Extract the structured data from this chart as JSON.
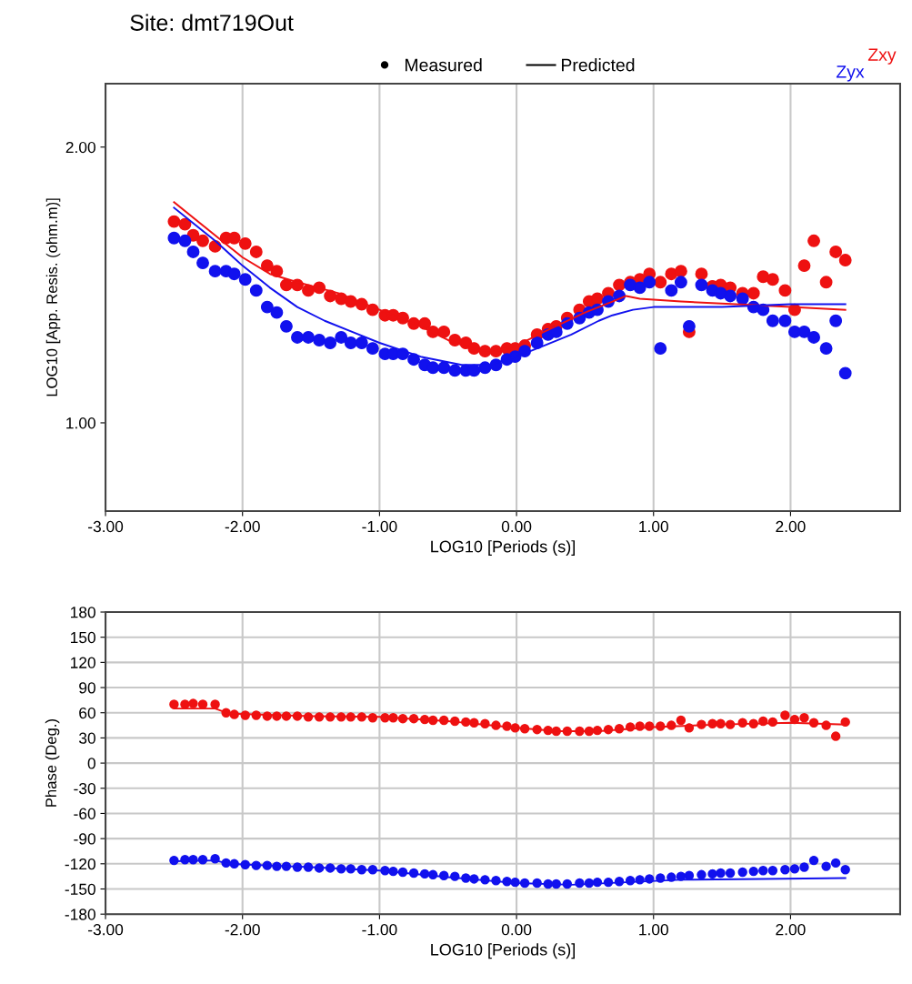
{
  "chart_data": [
    {
      "type": "scatter",
      "title": "Site: dmt719Out",
      "xlabel": "LOG10 [Periods (s)]",
      "ylabel": "LOG10 [App. Resis. (ohm.m)]",
      "annotations": [
        "Measured",
        "Predicted"
      ],
      "legend": "top",
      "grid": "x",
      "xlim": [
        -3.0,
        2.8
      ],
      "ylim": [
        0.68,
        2.23
      ],
      "xticks": [
        {
          "value": -3,
          "label": "-3.00"
        },
        {
          "value": -2,
          "label": "-2.00"
        },
        {
          "value": -1,
          "label": "-1.00"
        },
        {
          "value": 0,
          "label": "0.00"
        },
        {
          "value": 1,
          "label": "1.00"
        },
        {
          "value": 2,
          "label": "2.00"
        }
      ],
      "yticks": [
        {
          "value": 1,
          "label": "1.00"
        },
        {
          "value": 2,
          "label": "2.00"
        }
      ],
      "x": [
        -2.5,
        -2.42,
        -2.36,
        -2.29,
        -2.2,
        -2.12,
        -2.06,
        -1.98,
        -1.9,
        -1.82,
        -1.75,
        -1.68,
        -1.6,
        -1.52,
        -1.44,
        -1.36,
        -1.28,
        -1.21,
        -1.13,
        -1.05,
        -0.96,
        -0.9,
        -0.83,
        -0.75,
        -0.67,
        -0.61,
        -0.53,
        -0.45,
        -0.37,
        -0.31,
        -0.23,
        -0.15,
        -0.07,
        -0.01,
        0.06,
        0.15,
        0.23,
        0.29,
        0.37,
        0.46,
        0.53,
        0.59,
        0.67,
        0.75,
        0.83,
        0.9,
        0.97,
        1.05,
        1.13,
        1.2,
        1.26,
        1.35,
        1.43,
        1.49,
        1.56,
        1.65,
        1.73,
        1.8,
        1.87,
        1.96,
        2.03,
        2.1,
        2.17,
        2.26,
        2.33,
        2.4
      ],
      "series": [
        {
          "name": "Zxy",
          "marker": "circle",
          "color": "#ee1111",
          "values": [
            1.73,
            1.72,
            1.68,
            1.66,
            1.64,
            1.67,
            1.67,
            1.65,
            1.62,
            1.57,
            1.55,
            1.5,
            1.5,
            1.48,
            1.49,
            1.46,
            1.45,
            1.44,
            1.43,
            1.41,
            1.39,
            1.39,
            1.38,
            1.36,
            1.36,
            1.33,
            1.33,
            1.3,
            1.29,
            1.27,
            1.26,
            1.26,
            1.27,
            1.27,
            1.28,
            1.32,
            1.34,
            1.35,
            1.38,
            1.41,
            1.44,
            1.45,
            1.47,
            1.5,
            1.51,
            1.52,
            1.54,
            1.51,
            1.54,
            1.55,
            1.33,
            1.54,
            1.495,
            1.5,
            1.49,
            1.47,
            1.47,
            1.53,
            1.52,
            1.48,
            1.41,
            1.57,
            1.66,
            1.51,
            1.62,
            1.59
          ]
        },
        {
          "name": "Zyx",
          "marker": "circle",
          "color": "#1111ee",
          "values": [
            1.67,
            1.66,
            1.62,
            1.58,
            1.55,
            1.55,
            1.54,
            1.52,
            1.48,
            1.42,
            1.4,
            1.35,
            1.31,
            1.31,
            1.3,
            1.29,
            1.31,
            1.29,
            1.29,
            1.27,
            1.25,
            1.25,
            1.25,
            1.23,
            1.21,
            1.2,
            1.2,
            1.19,
            1.19,
            1.19,
            1.2,
            1.21,
            1.23,
            1.24,
            1.26,
            1.29,
            1.32,
            1.33,
            1.36,
            1.38,
            1.4,
            1.41,
            1.44,
            1.46,
            1.5,
            1.49,
            1.51,
            1.27,
            1.48,
            1.51,
            1.35,
            1.5,
            1.48,
            1.47,
            1.46,
            1.45,
            1.42,
            1.41,
            1.37,
            1.37,
            1.33,
            1.33,
            1.31,
            1.27,
            1.37,
            1.18
          ]
        },
        {
          "type": "line",
          "color": "#ee1111",
          "x": [
            -2.5,
            -2.2,
            -2.0,
            -1.8,
            -1.6,
            -1.3,
            -1.0,
            -0.7,
            -0.5,
            -0.3,
            -0.15,
            0,
            0.2,
            0.5,
            0.7,
            0.8,
            0.9,
            1.2,
            1.6,
            2.0,
            2.4
          ],
          "values": [
            1.8,
            1.68,
            1.6,
            1.54,
            1.51,
            1.47,
            1.41,
            1.35,
            1.3,
            1.265,
            1.26,
            1.28,
            1.33,
            1.4,
            1.44,
            1.46,
            1.45,
            1.44,
            1.43,
            1.42,
            1.41
          ]
        },
        {
          "type": "line",
          "color": "#1111ee",
          "x": [
            -2.5,
            -2.2,
            -2.0,
            -1.8,
            -1.6,
            -1.4,
            -1.2,
            -1.0,
            -0.7,
            -0.4,
            -0.2,
            0,
            0.2,
            0.4,
            0.6,
            0.7,
            0.85,
            1.0,
            1.5,
            2.0,
            2.4
          ],
          "values": [
            1.78,
            1.66,
            1.57,
            1.49,
            1.42,
            1.37,
            1.33,
            1.29,
            1.24,
            1.21,
            1.21,
            1.24,
            1.28,
            1.32,
            1.37,
            1.39,
            1.41,
            1.42,
            1.42,
            1.43,
            1.43
          ]
        }
      ]
    },
    {
      "type": "scatter",
      "xlabel": "LOG10 [Periods (s)]",
      "ylabel": "Phase (Deg.)",
      "grid": true,
      "xlim": [
        -3.0,
        2.8
      ],
      "ylim": [
        -180,
        180
      ],
      "xticks": [
        {
          "value": -3,
          "label": "-3.00"
        },
        {
          "value": -2,
          "label": "-2.00"
        },
        {
          "value": -1,
          "label": "-1.00"
        },
        {
          "value": 0,
          "label": "0.00"
        },
        {
          "value": 1,
          "label": "1.00"
        },
        {
          "value": 2,
          "label": "2.00"
        }
      ],
      "yticks": [
        -180,
        -150,
        -120,
        -90,
        -60,
        -30,
        0,
        30,
        60,
        90,
        120,
        150,
        180
      ],
      "x": [
        -2.5,
        -2.42,
        -2.36,
        -2.29,
        -2.2,
        -2.12,
        -2.06,
        -1.98,
        -1.9,
        -1.82,
        -1.75,
        -1.68,
        -1.6,
        -1.52,
        -1.44,
        -1.36,
        -1.28,
        -1.21,
        -1.13,
        -1.05,
        -0.96,
        -0.9,
        -0.83,
        -0.75,
        -0.67,
        -0.61,
        -0.53,
        -0.45,
        -0.37,
        -0.31,
        -0.23,
        -0.15,
        -0.07,
        -0.01,
        0.06,
        0.15,
        0.23,
        0.29,
        0.37,
        0.46,
        0.53,
        0.59,
        0.67,
        0.75,
        0.83,
        0.9,
        0.97,
        1.05,
        1.13,
        1.2,
        1.26,
        1.35,
        1.43,
        1.49,
        1.56,
        1.65,
        1.73,
        1.8,
        1.87,
        1.96,
        2.03,
        2.1,
        2.17,
        2.26,
        2.33,
        2.4
      ],
      "series": [
        {
          "marker": "circle",
          "color": "#ee1111",
          "values": [
            70,
            70,
            71,
            70,
            70,
            60,
            58,
            57,
            57,
            56,
            56,
            56,
            56,
            55,
            55,
            55,
            55,
            55,
            55,
            54,
            54,
            54,
            53,
            53,
            52,
            51,
            51,
            50,
            49,
            48,
            47,
            45,
            44,
            42,
            41,
            40,
            39,
            38,
            38,
            38,
            38,
            39,
            40,
            41,
            43,
            44,
            44,
            44,
            45,
            51,
            42,
            46,
            47,
            47,
            46,
            48,
            47,
            50,
            49,
            57,
            52,
            54,
            48,
            45,
            32,
            49
          ]
        },
        {
          "marker": "circle",
          "color": "#1111ee",
          "values": [
            -116,
            -115,
            -115,
            -115,
            -114,
            -119,
            -120,
            -121,
            -122,
            -122,
            -123,
            -123,
            -124,
            -124,
            -125,
            -125,
            -126,
            -126,
            -127,
            -127,
            -128,
            -129,
            -130,
            -131,
            -132,
            -133,
            -134,
            -135,
            -137,
            -138,
            -139,
            -140,
            -141,
            -142,
            -143,
            -143,
            -144,
            -144,
            -144,
            -143,
            -143,
            -142,
            -142,
            -141,
            -140,
            -139,
            -138,
            -137,
            -136,
            -135,
            -134,
            -133,
            -132,
            -131,
            -131,
            -130,
            -129,
            -128,
            -128,
            -127,
            -126,
            -124,
            -116,
            -123,
            -119,
            -127
          ]
        },
        {
          "type": "line",
          "color": "#ee1111",
          "x": [
            -2.5,
            -2.2,
            -2.1,
            -1.5,
            -1.0,
            -0.5,
            0,
            0.3,
            0.6,
            1.0,
            1.5,
            2.0,
            2.4
          ],
          "values": [
            65,
            65,
            59,
            56,
            55,
            50,
            42,
            38,
            38,
            43,
            46,
            48,
            46
          ]
        },
        {
          "type": "line",
          "color": "#1111ee",
          "x": [
            -2.5,
            -2.2,
            -2.1,
            -1.5,
            -1.0,
            -0.5,
            0,
            0.4,
            0.8,
            1.2,
            1.8,
            2.4
          ],
          "values": [
            -117,
            -116,
            -120,
            -124,
            -128,
            -136,
            -143,
            -145,
            -142,
            -139,
            -138,
            -137
          ]
        }
      ]
    }
  ]
}
